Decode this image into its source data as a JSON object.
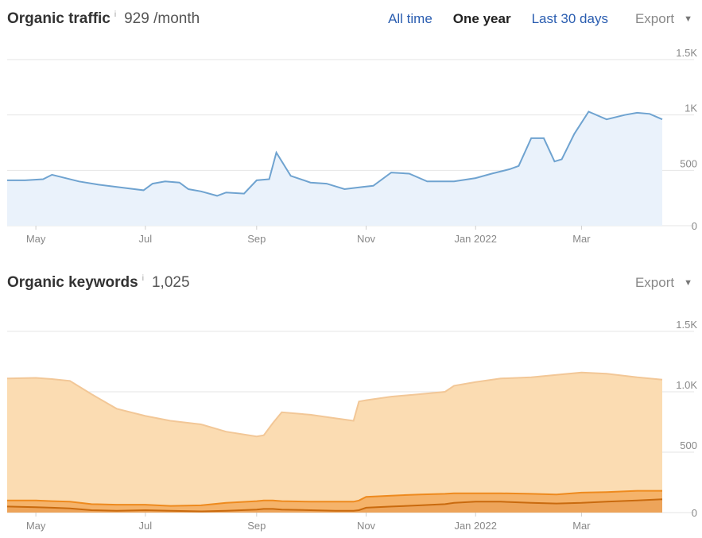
{
  "traffic": {
    "title": "Organic traffic",
    "info": "i",
    "value": "929 /month",
    "tabs": [
      {
        "label": "All time",
        "active": false
      },
      {
        "label": "One year",
        "active": true
      },
      {
        "label": "Last 30 days",
        "active": false
      }
    ],
    "export_label": "Export",
    "caret": "▼"
  },
  "keywords": {
    "title": "Organic keywords",
    "info": "i",
    "value": "1,025",
    "export_label": "Export",
    "caret": "▼"
  },
  "colors": {
    "traffic_line": "#6fa3d0",
    "traffic_fill": "#eaf2fb",
    "keywords_fill": "#fbdcb2",
    "keywords_line": "#f2c797",
    "band_fill": "#f5b36a",
    "band_top": "#ee8a1e",
    "band_mid": "#c96a0e",
    "grid": "#e6e6e6"
  },
  "chart_data": [
    {
      "type": "line",
      "x_dates": [
        "2021-04-15",
        "2021-04-25",
        "2021-05-05",
        "2021-05-10",
        "2021-05-15",
        "2021-05-25",
        "2021-06-05",
        "2021-06-20",
        "2021-06-30",
        "2021-07-05",
        "2021-07-12",
        "2021-07-20",
        "2021-07-25",
        "2021-08-01",
        "2021-08-10",
        "2021-08-15",
        "2021-08-25",
        "2021-09-01",
        "2021-09-08",
        "2021-09-12",
        "2021-09-20",
        "2021-10-01",
        "2021-10-10",
        "2021-10-20",
        "2021-10-30",
        "2021-11-05",
        "2021-11-15",
        "2021-11-25",
        "2021-12-05",
        "2021-12-20",
        "2022-01-01",
        "2022-01-10",
        "2022-01-20",
        "2022-01-25",
        "2022-02-01",
        "2022-02-08",
        "2022-02-14",
        "2022-02-18",
        "2022-02-25",
        "2022-03-05",
        "2022-03-15",
        "2022-03-25",
        "2022-04-01",
        "2022-04-08",
        "2022-04-15"
      ],
      "series": [
        {
          "values": [
            410,
            410,
            420,
            460,
            440,
            400,
            370,
            340,
            320,
            380,
            400,
            390,
            330,
            310,
            270,
            300,
            290,
            410,
            420,
            660,
            450,
            390,
            380,
            330,
            350,
            360,
            480,
            470,
            400,
            400,
            430,
            470,
            510,
            540,
            790,
            790,
            580,
            600,
            830,
            1030,
            960,
            1000,
            1020,
            1010,
            960
          ]
        }
      ],
      "x_ticks": [
        "May",
        "Jul",
        "Sep",
        "Nov",
        "Jan 2022",
        "Mar"
      ],
      "y_ticks": [
        "0",
        "500",
        "1K",
        "1.5K"
      ],
      "ylim": [
        0,
        1500
      ],
      "grid": true
    },
    {
      "type": "area",
      "x_dates": [
        "2021-04-15",
        "2021-05-01",
        "2021-05-10",
        "2021-05-20",
        "2021-06-01",
        "2021-06-15",
        "2021-07-01",
        "2021-07-15",
        "2021-08-01",
        "2021-08-15",
        "2021-09-01",
        "2021-09-05",
        "2021-09-10",
        "2021-09-15",
        "2021-10-01",
        "2021-10-15",
        "2021-10-25",
        "2021-10-28",
        "2021-11-01",
        "2021-11-15",
        "2021-12-01",
        "2021-12-15",
        "2021-12-20",
        "2022-01-01",
        "2022-01-15",
        "2022-02-01",
        "2022-02-15",
        "2022-03-01",
        "2022-03-15",
        "2022-04-01",
        "2022-04-15"
      ],
      "series": [
        {
          "values": [
            1110,
            1115,
            1105,
            1090,
            980,
            860,
            800,
            760,
            730,
            670,
            630,
            640,
            740,
            830,
            810,
            780,
            760,
            920,
            930,
            960,
            980,
            1000,
            1050,
            1080,
            1110,
            1120,
            1140,
            1160,
            1150,
            1120,
            1100
          ]
        },
        {
          "values": [
            100,
            100,
            95,
            90,
            70,
            65,
            65,
            55,
            60,
            80,
            95,
            100,
            100,
            95,
            90,
            90,
            90,
            100,
            130,
            140,
            150,
            155,
            160,
            160,
            160,
            155,
            150,
            165,
            170,
            180,
            180
          ]
        },
        {
          "values": [
            50,
            45,
            40,
            35,
            20,
            15,
            20,
            15,
            10,
            15,
            25,
            30,
            30,
            25,
            20,
            15,
            15,
            20,
            40,
            50,
            60,
            70,
            80,
            90,
            90,
            80,
            75,
            80,
            90,
            100,
            110
          ]
        }
      ],
      "x_ticks": [
        "May",
        "Jul",
        "Sep",
        "Nov",
        "Jan 2022",
        "Mar"
      ],
      "y_ticks": [
        "0",
        "500",
        "1.0K",
        "1.5K"
      ],
      "ylim": [
        0,
        1500
      ],
      "grid": true
    }
  ]
}
